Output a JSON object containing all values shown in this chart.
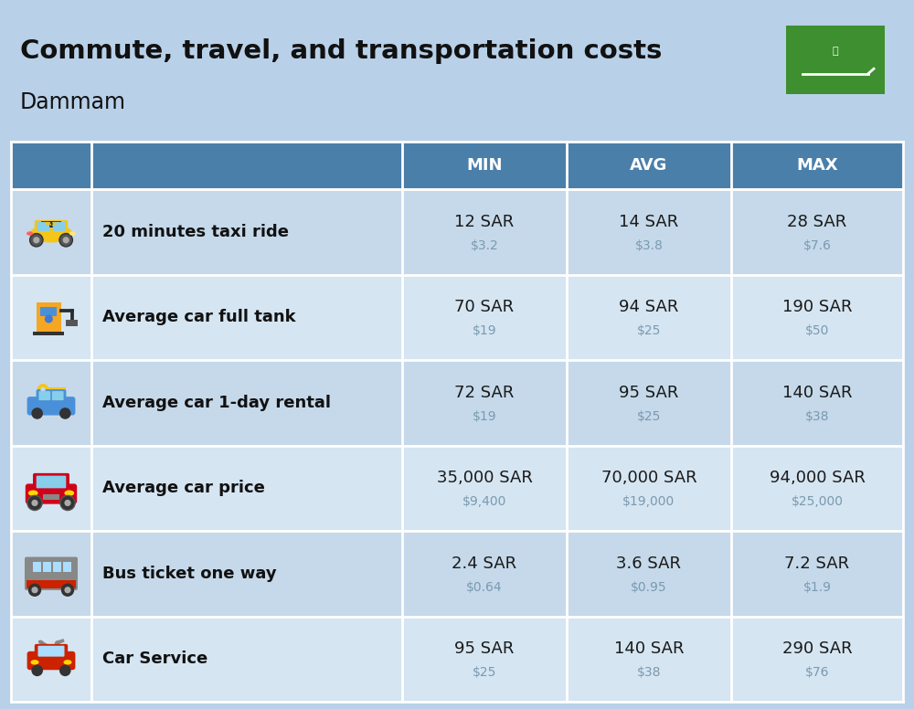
{
  "title": "Commute, travel, and transportation costs",
  "subtitle": "Dammam",
  "bg_color": "#b8d0e8",
  "header_bg": "#4a7faa",
  "header_text_color": "#ffffff",
  "row_bg_odd": "#c5d9ea",
  "row_bg_even": "#d5e5f2",
  "col_headers": [
    "MIN",
    "AVG",
    "MAX"
  ],
  "rows": [
    {
      "label": "20 minutes taxi ride",
      "min_sar": "12 SAR",
      "min_usd": "$3.2",
      "avg_sar": "14 SAR",
      "avg_usd": "$3.8",
      "max_sar": "28 SAR",
      "max_usd": "$7.6"
    },
    {
      "label": "Average car full tank",
      "min_sar": "70 SAR",
      "min_usd": "$19",
      "avg_sar": "94 SAR",
      "avg_usd": "$25",
      "max_sar": "190 SAR",
      "max_usd": "$50"
    },
    {
      "label": "Average car 1-day rental",
      "min_sar": "72 SAR",
      "min_usd": "$19",
      "avg_sar": "95 SAR",
      "avg_usd": "$25",
      "max_sar": "140 SAR",
      "max_usd": "$38"
    },
    {
      "label": "Average car price",
      "min_sar": "35,000 SAR",
      "min_usd": "$9,400",
      "avg_sar": "70,000 SAR",
      "avg_usd": "$19,000",
      "max_sar": "94,000 SAR",
      "max_usd": "$25,000"
    },
    {
      "label": "Bus ticket one way",
      "min_sar": "2.4 SAR",
      "min_usd": "$0.64",
      "avg_sar": "3.6 SAR",
      "avg_usd": "$0.95",
      "max_sar": "7.2 SAR",
      "max_usd": "$1.9"
    },
    {
      "label": "Car Service",
      "min_sar": "95 SAR",
      "min_usd": "$25",
      "avg_sar": "140 SAR",
      "avg_usd": "$38",
      "max_sar": "290 SAR",
      "max_usd": "$76"
    }
  ],
  "title_fontsize": 21,
  "subtitle_fontsize": 17,
  "header_fontsize": 13,
  "row_label_fontsize": 13,
  "row_value_fontsize": 13,
  "row_usd_fontsize": 10,
  "separator_color": "#ffffff",
  "value_color": "#1a1a1a",
  "usd_color": "#7a9ab0",
  "flag_green": "#3d8f2f"
}
